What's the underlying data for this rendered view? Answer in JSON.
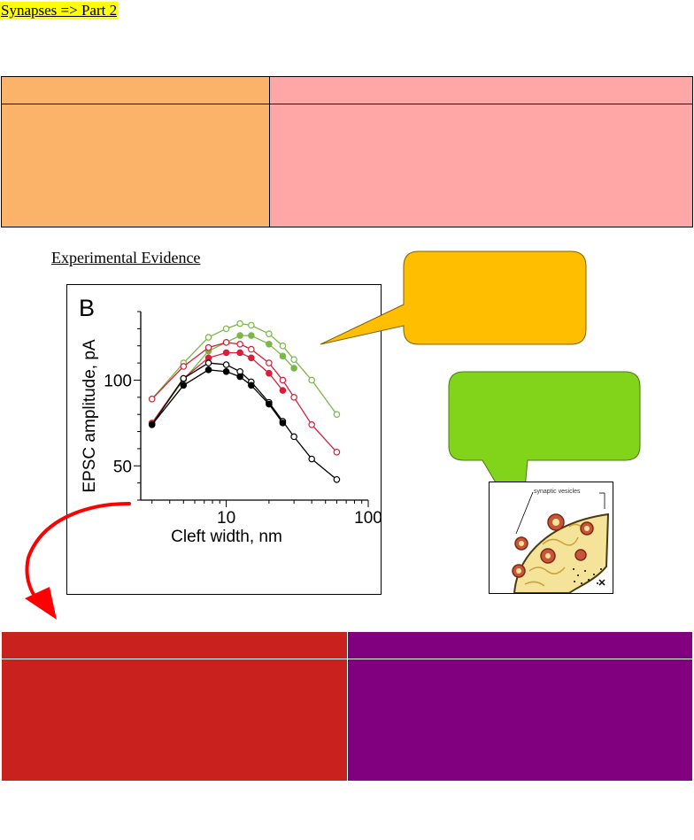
{
  "page": {
    "title": "Synapses => Part 2"
  },
  "top_table": {
    "rows": [
      [
        "",
        ""
      ],
      [
        "",
        ""
      ]
    ]
  },
  "section": {
    "heading": "Experimental Evidence"
  },
  "chart_data": {
    "type": "line",
    "panel_label": "B",
    "xlabel": "Cleft width, nm",
    "ylabel": "EPSC amplitude, pA",
    "x_scale": "log",
    "xlim": [
      2.5,
      100
    ],
    "ylim": [
      30,
      140
    ],
    "x_ticks": [
      10,
      100
    ],
    "x_tick_labels": [
      "10",
      "100"
    ],
    "y_ticks": [
      50,
      100
    ],
    "y_tick_labels": [
      "50",
      "100"
    ],
    "grid": false,
    "series": [
      {
        "color": "#7ab648",
        "marker": "open",
        "x": [
          3,
          5,
          7.5,
          10,
          12.5,
          15,
          20,
          25,
          30,
          40,
          60
        ],
        "y": [
          89,
          110,
          125,
          130,
          133,
          132,
          127,
          120,
          112,
          100,
          80
        ]
      },
      {
        "color": "#7ab648",
        "marker": "filled",
        "x": [
          3,
          5,
          7.5,
          10,
          12.5,
          15,
          20,
          25,
          30
        ],
        "y": [
          75,
          100,
          117,
          122,
          126,
          126,
          121,
          114,
          107
        ]
      },
      {
        "color": "#d71f3a",
        "marker": "open",
        "x": [
          3,
          5,
          7.5,
          10,
          12.5,
          15,
          20,
          25,
          30,
          40,
          60
        ],
        "y": [
          89,
          108,
          119,
          122,
          121,
          118,
          110,
          100,
          90,
          74,
          58
        ]
      },
      {
        "color": "#d71f3a",
        "marker": "filled",
        "x": [
          3,
          5,
          7.5,
          10,
          12.5,
          15,
          20,
          25
        ],
        "y": [
          75,
          101,
          113,
          116,
          116,
          113,
          104,
          94
        ]
      },
      {
        "color": "#000000",
        "marker": "open",
        "x": [
          3,
          5,
          7.5,
          10,
          12.5,
          15,
          20,
          25,
          30,
          40,
          60
        ],
        "y": [
          74,
          101,
          110,
          109,
          105,
          99,
          87,
          76,
          67,
          54,
          42
        ]
      },
      {
        "color": "#000000",
        "marker": "filled",
        "x": [
          3,
          5,
          7.5,
          10,
          12.5,
          15,
          20,
          25
        ],
        "y": [
          74,
          97,
          106,
          105,
          102,
          97,
          86,
          75
        ]
      }
    ]
  },
  "callouts": {
    "orange": {
      "color": "#ffbf00"
    },
    "green": {
      "color": "#81d41a"
    }
  },
  "vesicle_diagram": {
    "label": "synaptic vesicles"
  },
  "arrow": {
    "color": "#ff0000"
  },
  "bottom_table": {
    "rows": [
      [
        "",
        ""
      ],
      [
        "",
        ""
      ]
    ]
  }
}
